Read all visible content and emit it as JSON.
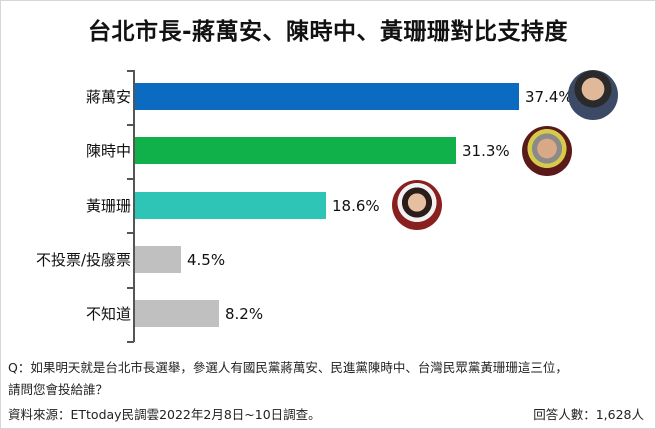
{
  "title": "台北市長-蔣萬安、陳時中、黃珊珊對比支持度",
  "rows": [
    {
      "label": "蔣萬安",
      "value_label": "37.4%",
      "color": "#0b6bc0"
    },
    {
      "label": "陳時中",
      "value_label": "31.3%",
      "color": "#10b04a"
    },
    {
      "label": "黃珊珊",
      "value_label": "18.6%",
      "color": "#2ec4b6"
    },
    {
      "label": "不投票/投廢票",
      "value_label": "4.5%",
      "color": "#c0c0c0"
    },
    {
      "label": "不知道",
      "value_label": "8.2%",
      "color": "#c0c0c0"
    }
  ],
  "avatars": [
    "candidate-photo-jiang",
    "candidate-photo-chen",
    "candidate-photo-huang"
  ],
  "footer": {
    "question_line1": "Q：如果明天就是台北市長選舉，參選人有國民黨蔣萬安、民進黨陳時中、台灣民眾黨黃珊珊這三位，",
    "question_line2": "請問您會投給誰？",
    "source": "資料來源：ETtoday民調雲2022年2月8日~10日調查。",
    "respondents": "回答人數：1,628人"
  },
  "chart_data": {
    "type": "bar",
    "orientation": "horizontal",
    "title": "台北市長-蔣萬安、陳時中、黃珊珊對比支持度",
    "categories": [
      "蔣萬安",
      "陳時中",
      "黃珊珊",
      "不投票/投廢票",
      "不知道"
    ],
    "values": [
      37.4,
      31.3,
      18.6,
      4.5,
      8.2
    ],
    "unit": "%",
    "colors": [
      "#0b6bc0",
      "#10b04a",
      "#2ec4b6",
      "#c0c0c0",
      "#c0c0c0"
    ],
    "xlabel": "",
    "ylabel": "",
    "grid": false,
    "legend": "none",
    "data_labels": [
      "37.4%",
      "31.3%",
      "18.6%",
      "4.5%",
      "8.2%"
    ]
  }
}
